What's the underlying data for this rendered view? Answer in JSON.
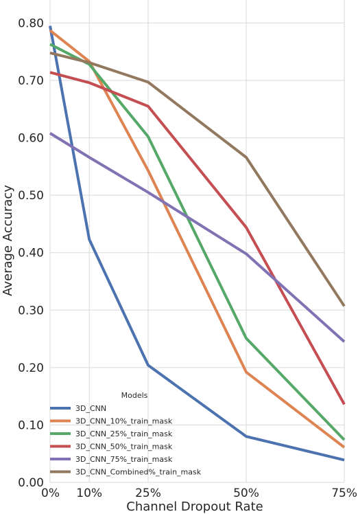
{
  "chart_data": {
    "type": "line",
    "xlabel": "Channel Dropout Rate",
    "ylabel": "Average Accuracy",
    "x": [
      0,
      10,
      25,
      50,
      75
    ],
    "x_tick_labels": [
      "0%",
      "10%",
      "25%",
      "50%",
      "75%"
    ],
    "y_ticks": [
      0.0,
      0.1,
      0.2,
      0.3,
      0.4,
      0.5,
      0.6,
      0.7,
      0.8
    ],
    "y_tick_labels": [
      "0.00",
      "0.10",
      "0.20",
      "0.30",
      "0.40",
      "0.50",
      "0.60",
      "0.70",
      "0.80"
    ],
    "xlim": [
      0,
      75
    ],
    "ylim": [
      0.0,
      0.84
    ],
    "grid": true,
    "legend": {
      "title": "Models",
      "placement": "lower-left"
    },
    "series": [
      {
        "name": "3D_CNN",
        "color": "#4c72b0",
        "values": [
          0.795,
          0.423,
          0.204,
          0.08,
          0.039
        ]
      },
      {
        "name": "3D_CNN_10%_train_mask",
        "color": "#dd8452",
        "values": [
          0.787,
          0.733,
          0.543,
          0.192,
          0.061
        ]
      },
      {
        "name": "3D_CNN_25%_train_mask",
        "color": "#55a868",
        "values": [
          0.763,
          0.728,
          0.602,
          0.251,
          0.074
        ]
      },
      {
        "name": "3D_CNN_50%_train_mask",
        "color": "#c44e52",
        "values": [
          0.714,
          0.696,
          0.655,
          0.444,
          0.136
        ]
      },
      {
        "name": "3D_CNN_75%_train_mask",
        "color": "#8172b3",
        "values": [
          0.608,
          0.566,
          0.505,
          0.398,
          0.245
        ]
      },
      {
        "name": "3D_CNN_Combined%_train_mask",
        "color": "#937860",
        "values": [
          0.748,
          0.731,
          0.697,
          0.566,
          0.307
        ]
      }
    ]
  }
}
